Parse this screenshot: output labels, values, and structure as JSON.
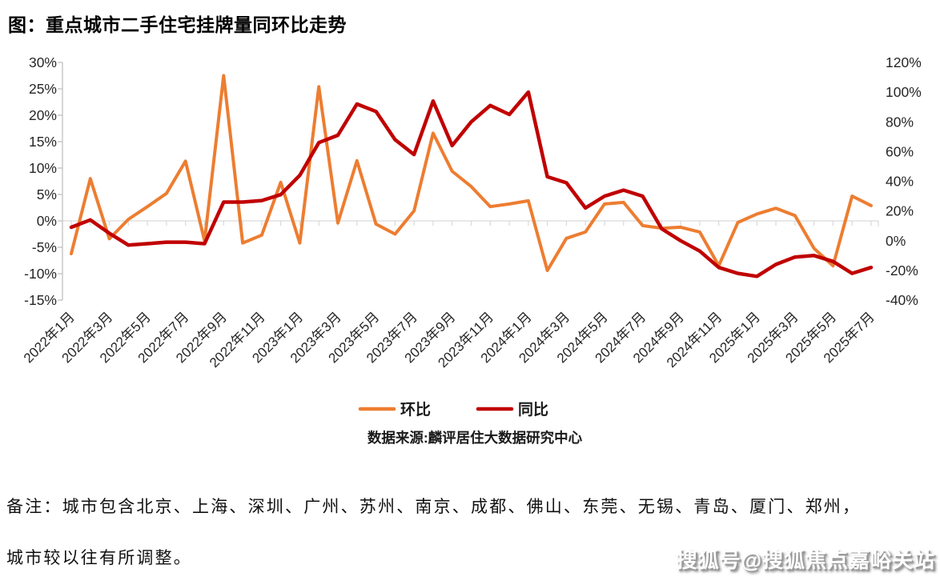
{
  "title": "图：重点城市二手住宅挂牌量同环比走势",
  "source": "数据来源:麟评居住大数据研究中心",
  "notes": [
    "备注：城市包含北京、上海、深圳、广州、苏州、南京、成都、佛山、东莞、无锡、青岛、厦门、郑州，",
    "城市较以往有所调整。"
  ],
  "watermark": "搜狐号@搜狐焦点嘉峪关站",
  "colors": {
    "mom_line": "#ED7D31",
    "yoy_line": "#C00000",
    "axis_line": "#BFBFBF",
    "grid_line": "#D9D9D9",
    "tick_text": "#262626",
    "title_text": "#000000"
  },
  "chart_data": {
    "type": "line",
    "title": "重点城市二手住宅挂牌量同环比走势",
    "grid": "horizontal zero line only",
    "legend_position": "bottom-center",
    "months": [
      "2022年1月",
      "2022年2月",
      "2022年3月",
      "2022年4月",
      "2022年5月",
      "2022年6月",
      "2022年7月",
      "2022年8月",
      "2022年9月",
      "2022年10月",
      "2022年11月",
      "2022年12月",
      "2023年1月",
      "2023年2月",
      "2023年3月",
      "2023年4月",
      "2023年5月",
      "2023年6月",
      "2023年7月",
      "2023年8月",
      "2023年9月",
      "2023年10月",
      "2023年11月",
      "2023年12月",
      "2024年1月",
      "2024年2月",
      "2024年3月",
      "2024年4月",
      "2024年5月",
      "2024年6月",
      "2024年7月",
      "2024年8月",
      "2024年9月",
      "2024年10月",
      "2024年11月",
      "2024年12月",
      "2025年1月",
      "2025年2月",
      "2025年3月",
      "2025年4月",
      "2025年5月",
      "2025年6月",
      "2025年7月"
    ],
    "x_tick_labels": [
      "2022年1月",
      "2022年3月",
      "2022年5月",
      "2022年7月",
      "2022年9月",
      "2022年11月",
      "2023年1月",
      "2023年3月",
      "2023年5月",
      "2023年7月",
      "2023年9月",
      "2023年11月",
      "2024年1月",
      "2024年3月",
      "2024年5月",
      "2024年7月",
      "2024年9月",
      "2024年11月",
      "2025年1月",
      "2025年3月",
      "2025年5月",
      "2025年7月"
    ],
    "left_axis": {
      "min": -15,
      "max": 30,
      "step": 5,
      "unit": "%",
      "ticks": [
        "30%",
        "25%",
        "20%",
        "15%",
        "10%",
        "5%",
        "0%",
        "-5%",
        "-10%",
        "-15%"
      ]
    },
    "right_axis": {
      "min": -40,
      "max": 120,
      "step": 20,
      "unit": "%",
      "ticks": [
        "120%",
        "100%",
        "80%",
        "60%",
        "40%",
        "20%",
        "0%",
        "-20%",
        "-40%"
      ]
    },
    "series": [
      {
        "name": "环比",
        "axis": "left",
        "color": "#ED7D31",
        "values": [
          -6.2,
          8.0,
          -3.4,
          0.3,
          2.7,
          5.2,
          11.3,
          -3.8,
          27.5,
          -4.2,
          -2.7,
          7.3,
          -4.2,
          25.4,
          -0.4,
          11.4,
          -0.6,
          -2.5,
          1.9,
          16.6,
          9.4,
          6.5,
          2.7,
          3.2,
          3.8,
          -9.4,
          -3.3,
          -2.1,
          3.2,
          3.5,
          -0.9,
          -1.4,
          -1.2,
          -2.1,
          -8.5,
          -0.3,
          1.3,
          2.4,
          1.0,
          -5.2,
          -8.5,
          4.7,
          2.9
        ]
      },
      {
        "name": "同比",
        "axis": "right",
        "color": "#C00000",
        "values": [
          9,
          14,
          5,
          -3,
          -2,
          -1,
          -1,
          -2,
          26,
          26,
          27,
          31,
          44,
          66,
          71,
          92,
          87,
          68,
          58,
          94,
          64,
          80,
          91,
          85,
          100,
          43,
          39,
          22,
          30,
          34,
          30,
          8,
          0,
          -7,
          -18,
          -22,
          -24,
          -16,
          -11,
          -10,
          -14,
          -22,
          -18
        ]
      }
    ]
  }
}
